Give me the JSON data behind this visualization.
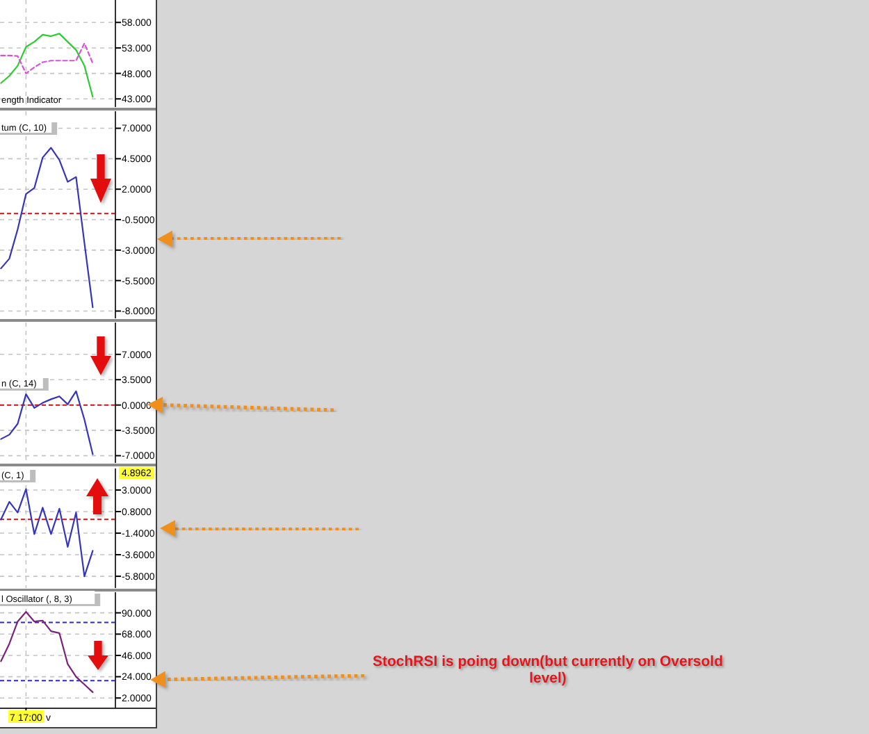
{
  "chart_data": [
    {
      "type": "line",
      "title": "ength Indicator",
      "categories": [
        null,
        null,
        null,
        null,
        null,
        null,
        null,
        null,
        null,
        null,
        null,
        null
      ],
      "series": [
        {
          "color": "#2ecc2e",
          "values": [
            46.1,
            47.5,
            49.5,
            53.2,
            54.2,
            55.6,
            55.3,
            55.8,
            54.2,
            52.6,
            49.5,
            43.4
          ]
        },
        {
          "color": "#d652d6",
          "line_style": "dashed",
          "values": [
            51.5,
            51.5,
            51.4,
            48.0,
            49.2,
            50.2,
            50.5,
            50.5,
            50.5,
            50.5,
            53.9,
            50.0
          ]
        }
      ],
      "ylim": [
        41.4,
        62.4
      ],
      "yticks": [
        {
          "value": 58,
          "label": "58.000"
        },
        {
          "value": 53,
          "label": "53.000"
        },
        {
          "value": 48,
          "label": "48.000"
        },
        {
          "value": 43,
          "label": "43.000"
        }
      ],
      "grid": true,
      "tick_labels": "y"
    },
    {
      "type": "line",
      "title": "tum (C, 10)",
      "categories": [
        null,
        null,
        null,
        null,
        null,
        null,
        null,
        null,
        null,
        null,
        null,
        null
      ],
      "series": [
        {
          "color": "#3535bb",
          "values": [
            -4.5,
            -3.7,
            -1.3,
            1.6,
            2.1,
            4.6,
            5.4,
            4.4,
            2.6,
            3.0,
            -2.4,
            -7.7
          ]
        }
      ],
      "ylim": [
        -8.6,
        8.4
      ],
      "yticks": [
        {
          "value": 7,
          "label": "7.0000"
        },
        {
          "value": 4.5,
          "label": "4.5000"
        },
        {
          "value": 2,
          "label": "2.0000"
        },
        {
          "value": -0.5,
          "label": "-0.5000"
        },
        {
          "value": -3,
          "label": "-3.0000"
        },
        {
          "value": -5.5,
          "label": "-5.5000"
        },
        {
          "value": -8,
          "label": "-8.0000"
        }
      ],
      "ref_lines": [
        {
          "axis": "y",
          "value": 0,
          "color": "#c81414",
          "line_style": "dashed"
        }
      ],
      "grid": true,
      "tick_labels": "y"
    },
    {
      "type": "line",
      "title": "n (C, 14)",
      "categories": [
        null,
        null,
        null,
        null,
        null,
        null,
        null,
        null,
        null,
        null,
        null,
        null
      ],
      "series": [
        {
          "color": "#3535bb",
          "values": [
            -4.7,
            -4.1,
            -2.6,
            1.5,
            -0.4,
            0.3,
            0.8,
            1.2,
            0.1,
            1.9,
            -2.0,
            -6.8
          ]
        }
      ],
      "ylim": [
        -8.0,
        11.4
      ],
      "yticks": [
        {
          "value": 7,
          "label": "7.0000"
        },
        {
          "value": 3.5,
          "label": "3.5000"
        },
        {
          "value": 0,
          "label": "0.0000"
        },
        {
          "value": -3.5,
          "label": "-3.5000"
        },
        {
          "value": -7,
          "label": "-7.0000"
        }
      ],
      "ref_lines": [
        {
          "axis": "y",
          "value": 0,
          "color": "#c81414",
          "line_style": "dashed"
        }
      ],
      "grid": true,
      "tick_labels": "y"
    },
    {
      "type": "line",
      "title": "(C, 1)",
      "categories": [
        null,
        null,
        null,
        null,
        null,
        null,
        null,
        null,
        null,
        null,
        null,
        null
      ],
      "series": [
        {
          "color": "#3535bb",
          "values": [
            0.0,
            1.8,
            0.7,
            3.1,
            -1.5,
            1.2,
            -1.5,
            1.1,
            -2.8,
            0.7,
            -5.8,
            -3.2
          ]
        }
      ],
      "ylim": [
        -7.0,
        5.2
      ],
      "yticks": [
        {
          "value": 3,
          "label": "3.0000"
        },
        {
          "value": 0.8,
          "label": "0.8000"
        },
        {
          "value": -1.4,
          "label": "-1.4000"
        },
        {
          "value": -3.6,
          "label": "-3.6000"
        },
        {
          "value": -5.8,
          "label": "-5.8000"
        }
      ],
      "ref_lines": [
        {
          "axis": "y",
          "value": 0,
          "color": "#c81414",
          "line_style": "dashed"
        }
      ],
      "annotations": [
        "4.8962"
      ],
      "grid": true,
      "tick_labels": "y"
    },
    {
      "type": "line",
      "title": "l Oscillator (, 8, 3)",
      "categories": [
        null,
        null,
        null,
        "7 17:00",
        null,
        null,
        null,
        null,
        null,
        null,
        null,
        null
      ],
      "series": [
        {
          "color": "#7a237a",
          "values": [
            40,
            58,
            81,
            91,
            81,
            82,
            71,
            69,
            37,
            24,
            16,
            8
          ]
        }
      ],
      "ylim": [
        -7.9,
        111.3
      ],
      "yticks": [
        {
          "value": 90,
          "label": "90.000"
        },
        {
          "value": 68,
          "label": "68.000"
        },
        {
          "value": 46,
          "label": "46.000"
        },
        {
          "value": 24,
          "label": "24.000"
        },
        {
          "value": 2,
          "label": "2.0000"
        }
      ],
      "ref_lines": [
        {
          "axis": "y",
          "value": 80,
          "color": "#2a2ad0",
          "line_style": "dashed"
        },
        {
          "axis": "y",
          "value": 20,
          "color": "#2a2ad0",
          "line_style": "dashed"
        }
      ],
      "annotations": [
        "StochRSI is poing down(but currently on Oversold level)",
        "v"
      ],
      "grid": true
    }
  ]
}
